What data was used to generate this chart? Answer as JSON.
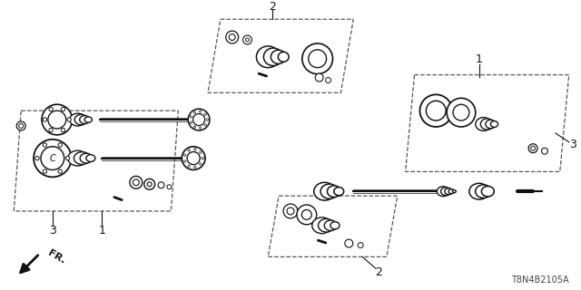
{
  "bg_color": "#ffffff",
  "line_color": "#111111",
  "dash_color": "#555555",
  "part_number": "T8N4B2105A"
}
